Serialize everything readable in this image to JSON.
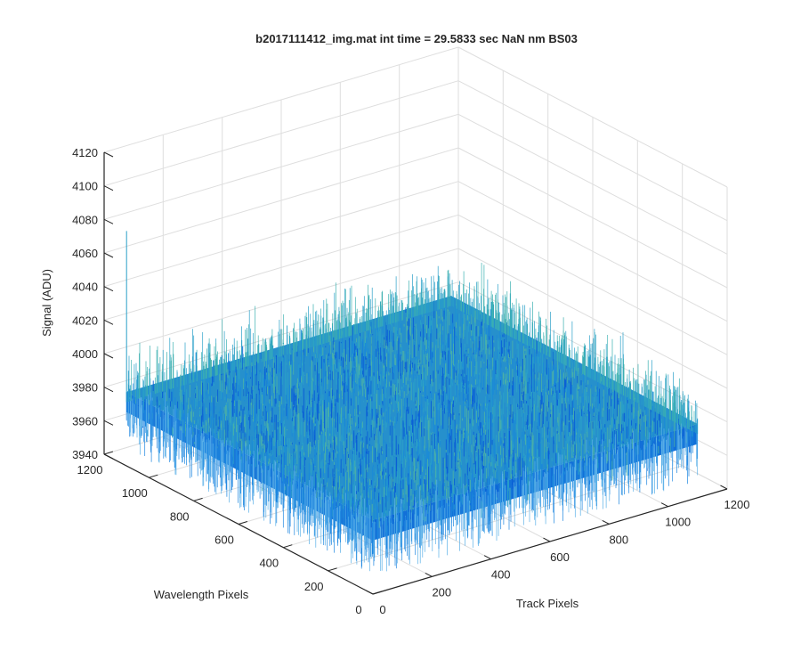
{
  "chart_data": {
    "type": "surface",
    "title": "b2017111412_img.mat int time = 29.5833 sec  NaN nm BS03",
    "xlabel": "Track Pixels",
    "ylabel": "Wavelength Pixels",
    "zlabel": "Signal (ADU)",
    "xlim": [
      0,
      1200
    ],
    "ylim": [
      0,
      1200
    ],
    "zlim": [
      3940,
      4120
    ],
    "x_ticks": [
      "0",
      "200",
      "400",
      "600",
      "800",
      "1000",
      "1200"
    ],
    "y_ticks": [
      "0",
      "200",
      "400",
      "600",
      "800",
      "1000",
      "1200"
    ],
    "z_ticks": [
      "3940",
      "3960",
      "3980",
      "4000",
      "4020",
      "4040",
      "4060",
      "4080",
      "4100",
      "4120"
    ],
    "surface_extent": {
      "x": [
        0,
        1100
      ],
      "y": [
        0,
        1100
      ]
    },
    "baseline_signal": 3978,
    "noise_range": [
      3950,
      4010
    ],
    "outlier": {
      "x": 0,
      "y": 1100,
      "value": 4080
    },
    "grid": true,
    "colormap": [
      "#0a5fd6",
      "#1a8ad8",
      "#2aa0c8",
      "#4ab0a8"
    ]
  }
}
